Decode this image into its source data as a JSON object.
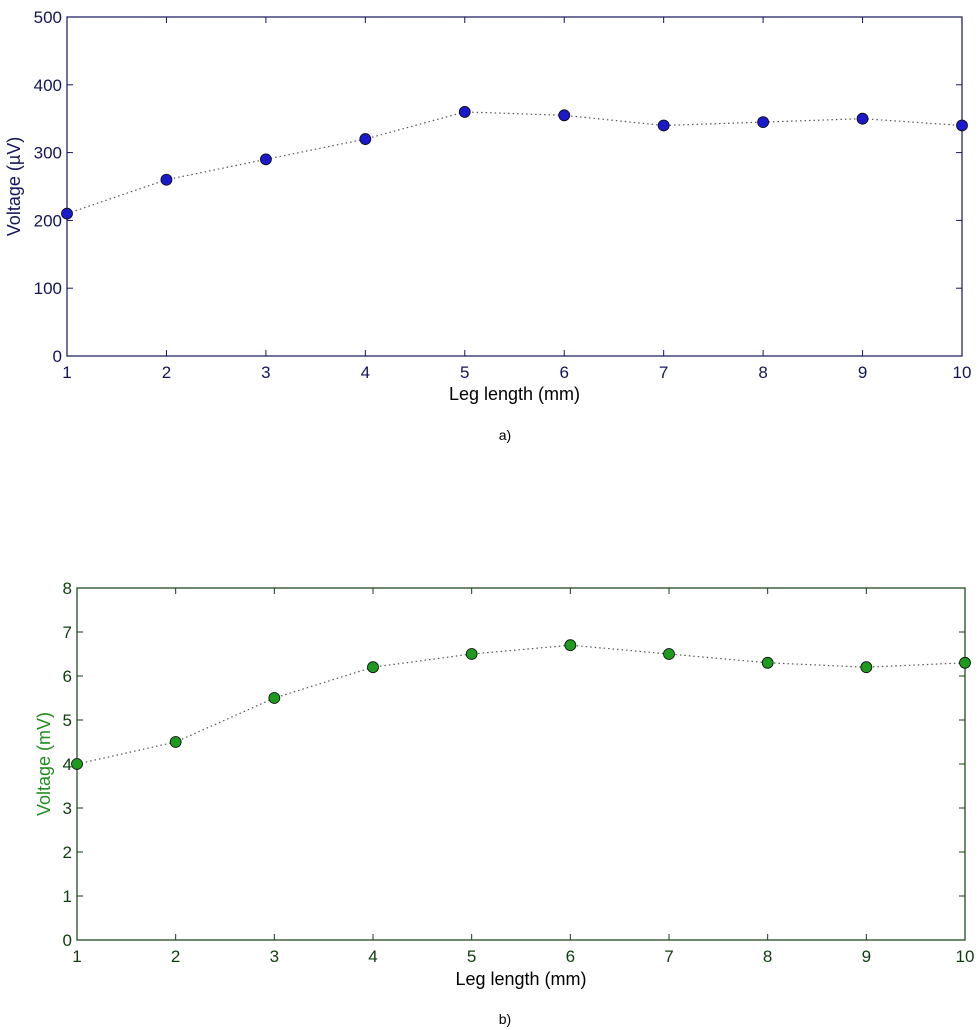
{
  "chart_data": [
    {
      "type": "line",
      "caption": "a)",
      "xlabel": "Leg length (mm)",
      "ylabel": "Voltage (µV)",
      "xlim": [
        1,
        10
      ],
      "ylim": [
        0,
        500
      ],
      "xticks": [
        "1",
        "2",
        "3",
        "4",
        "5",
        "6",
        "7",
        "8",
        "9",
        "10"
      ],
      "yticks": [
        "0",
        "100",
        "200",
        "300",
        "400",
        "500"
      ],
      "grid": false,
      "line_style": "dotted",
      "marker": "circle",
      "marker_color": "#1a1acc",
      "axis_color": "#14145a",
      "series": [
        {
          "x": [
            1,
            2,
            3,
            4,
            5,
            6,
            7,
            8,
            9,
            10
          ],
          "values": [
            210,
            260,
            290,
            320,
            360,
            355,
            340,
            345,
            350,
            340
          ]
        }
      ]
    },
    {
      "type": "line",
      "caption": "b)",
      "xlabel": "Leg length (mm)",
      "ylabel": "Voltage (mV)",
      "xlim": [
        1,
        10
      ],
      "ylim": [
        0,
        8
      ],
      "xticks": [
        "1",
        "2",
        "3",
        "4",
        "5",
        "6",
        "7",
        "8",
        "9",
        "10"
      ],
      "yticks": [
        "0",
        "1",
        "2",
        "3",
        "4",
        "5",
        "6",
        "7",
        "8"
      ],
      "grid": false,
      "line_style": "dotted",
      "marker": "circle",
      "marker_color": "#1e9a1e",
      "axis_color": "#0f3d0f",
      "ylabel_color": "#1e8c1e",
      "series": [
        {
          "x": [
            1,
            2,
            3,
            4,
            5,
            6,
            7,
            8,
            9,
            10
          ],
          "values": [
            4.0,
            4.5,
            5.5,
            6.2,
            6.5,
            6.7,
            6.5,
            6.3,
            6.2,
            6.3
          ]
        }
      ]
    }
  ]
}
